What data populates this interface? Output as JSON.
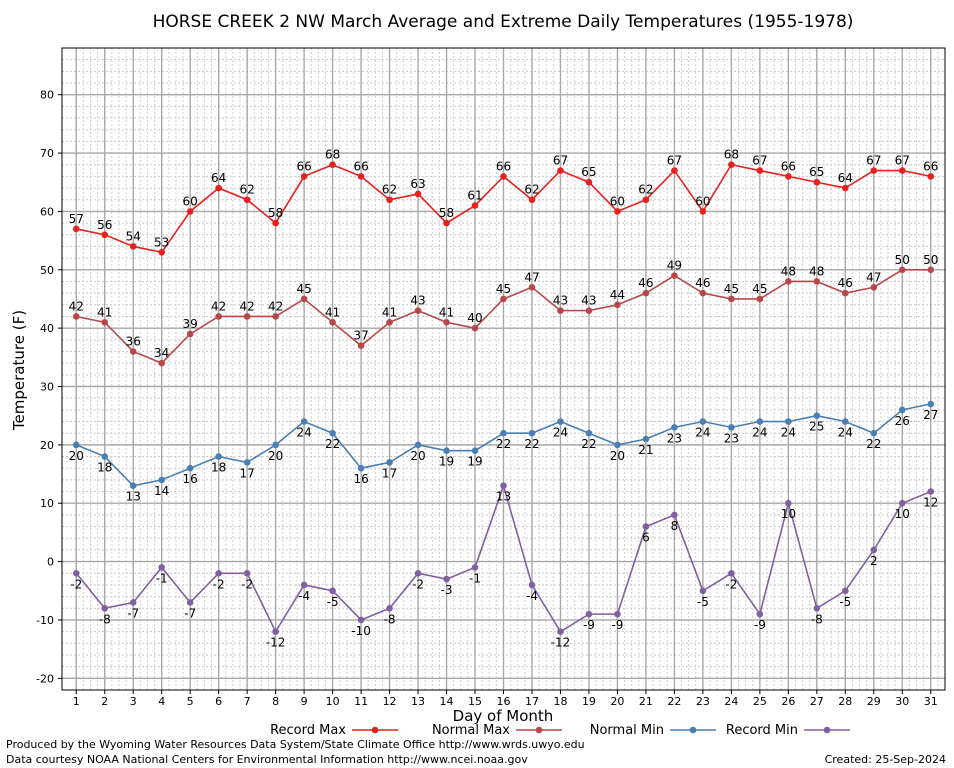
{
  "chart_data": {
    "type": "line",
    "title": "HORSE CREEK 2 NW March Average and Extreme Daily Temperatures (1955-1978)",
    "xlabel": "Day of Month",
    "ylabel": "Temperature (F)",
    "xlim": [
      1,
      31
    ],
    "ylim": [
      -20,
      90
    ],
    "x_ticks": [
      1,
      2,
      3,
      4,
      5,
      6,
      7,
      8,
      9,
      10,
      11,
      12,
      13,
      14,
      15,
      16,
      17,
      18,
      19,
      20,
      21,
      22,
      23,
      24,
      25,
      26,
      27,
      28,
      29,
      30,
      31
    ],
    "y_ticks": [
      -20,
      -10,
      0,
      10,
      20,
      30,
      40,
      50,
      60,
      70,
      80
    ],
    "grid": true,
    "legend_position": "bottom",
    "series": [
      {
        "name": "Record Max",
        "color": "#e8201e",
        "label_position": "above",
        "values": [
          57,
          56,
          54,
          53,
          60,
          64,
          62,
          58,
          66,
          68,
          66,
          62,
          63,
          58,
          61,
          66,
          62,
          67,
          65,
          60,
          62,
          67,
          60,
          68,
          67,
          66,
          65,
          64,
          67,
          67,
          66
        ]
      },
      {
        "name": "Normal Max",
        "color": "#b8474a",
        "label_position": "above",
        "values": [
          42,
          41,
          36,
          34,
          39,
          42,
          42,
          42,
          45,
          41,
          37,
          41,
          43,
          41,
          40,
          45,
          47,
          43,
          43,
          44,
          46,
          49,
          46,
          45,
          45,
          48,
          48,
          46,
          47,
          50,
          50
        ]
      },
      {
        "name": "Normal Min",
        "color": "#4a7fb4",
        "label_position": "below",
        "values": [
          20,
          18,
          13,
          14,
          16,
          18,
          17,
          20,
          24,
          22,
          16,
          17,
          20,
          19,
          19,
          22,
          22,
          24,
          22,
          20,
          21,
          23,
          24,
          23,
          24,
          24,
          25,
          24,
          22,
          26,
          27
        ]
      },
      {
        "name": "Record Min",
        "color": "#8060a0",
        "label_position": "below",
        "values": [
          -2,
          -8,
          -7,
          -1,
          -7,
          -2,
          -2,
          -12,
          -4,
          -5,
          -10,
          -8,
          -2,
          -3,
          -1,
          13,
          -4,
          -12,
          -9,
          -9,
          6,
          8,
          -5,
          -2,
          -9,
          10,
          -8,
          -5,
          2,
          10,
          12
        ]
      }
    ]
  },
  "footer": {
    "produced_by": "Produced by the Wyoming Water Resources Data System/State Climate Office http://www.wrds.uwyo.edu",
    "data_courtesy": "Data courtesy NOAA National Centers for Environmental Information http://www.ncei.noaa.gov",
    "created": "Created:  25-Sep-2024"
  }
}
